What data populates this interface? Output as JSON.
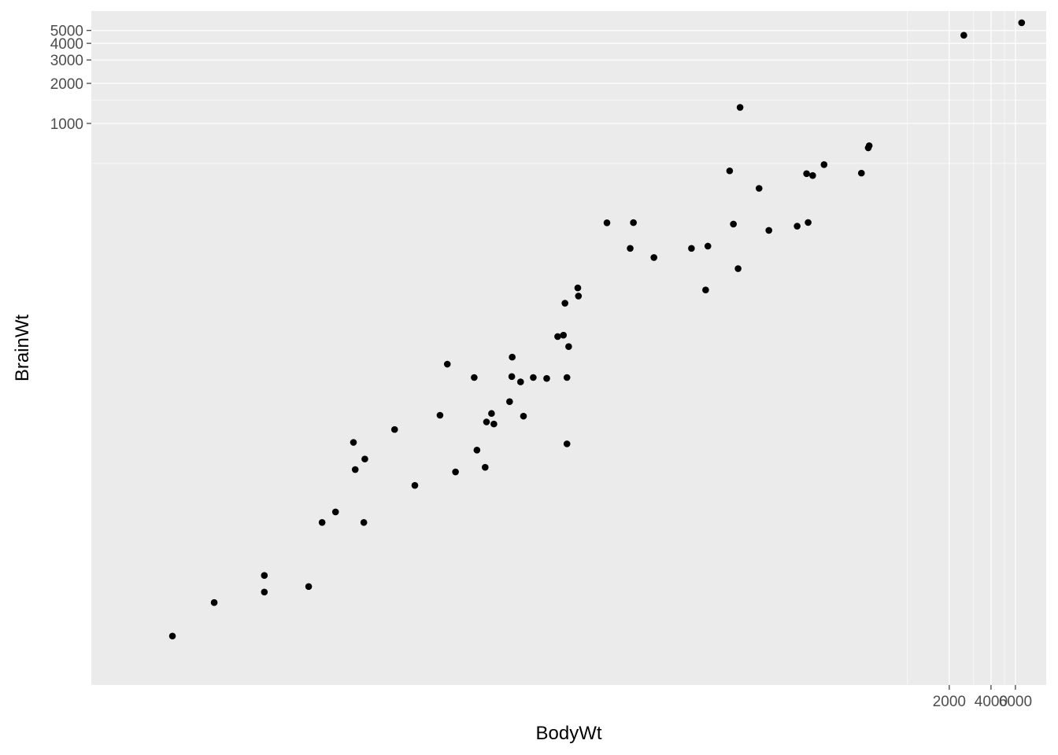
{
  "chart_data": {
    "type": "scatter",
    "title": "",
    "xlabel": "BodyWt",
    "ylabel": "BrainWt",
    "x_scale": "log",
    "y_scale": "log",
    "xlim": [
      0.0013,
      10000
    ],
    "ylim": [
      0.06,
      7000
    ],
    "x_ticks": [
      {
        "value": 2000,
        "label": "2000"
      },
      {
        "value": 4000,
        "label": "4000"
      },
      {
        "value": 6000,
        "label": "6000"
      }
    ],
    "y_ticks": [
      {
        "value": 1000,
        "label": "1000"
      },
      {
        "value": 2000,
        "label": "2000"
      },
      {
        "value": 3000,
        "label": "3000"
      },
      {
        "value": 4000,
        "label": "4000"
      },
      {
        "value": 5000,
        "label": "5000"
      }
    ],
    "x_minor_grid": [
      1000,
      3000,
      5000
    ],
    "y_minor_grid": [
      500,
      1500
    ],
    "grid": true,
    "background": "#ebebeb",
    "grid_color": "#ffffff",
    "point_color": "#000000",
    "series": [
      {
        "x": [
          6654,
          1.0,
          3.385,
          0.92,
          2547,
          10.55,
          0.023,
          160,
          3.3,
          52.16,
          0.425,
          465,
          0.55,
          187.1,
          0.075,
          3.0,
          0.785,
          0.2,
          1.41,
          60,
          529,
          27.66,
          0.12,
          207,
          85,
          36.33,
          0.101,
          1.04,
          521,
          100,
          35,
          0.005,
          0.01,
          62,
          0.122,
          1.35,
          0.023,
          0.048,
          1.7,
          3.5,
          250,
          0.48,
          10,
          1.62,
          192,
          2.5,
          0.28,
          4.235,
          6.8,
          0.75,
          3.6,
          14.83,
          55.5,
          1.4,
          0.06,
          0.9,
          2.0,
          0.104,
          4.19,
          3.5
        ],
        "y": [
          5712,
          6.6,
          44.5,
          5.7,
          4603,
          179.5,
          0.3,
          169,
          25.6,
          440,
          6.4,
          423,
          2.4,
          419,
          1.2,
          25,
          3.5,
          5,
          17.5,
          81,
          680,
          115,
          1,
          406,
          325,
          119.5,
          4,
          5.5,
          655,
          157,
          56,
          0.14,
          0.25,
          1320,
          3,
          8.1,
          0.4,
          0.33,
          6.3,
          12.3,
          490,
          15.5,
          115,
          11.4,
          180,
          12.1,
          1.9,
          50.4,
          179,
          12.3,
          21,
          98.2,
          175,
          12.5,
          1,
          2.6,
          12.3,
          2.5,
          58,
          3.9
        ]
      }
    ]
  }
}
